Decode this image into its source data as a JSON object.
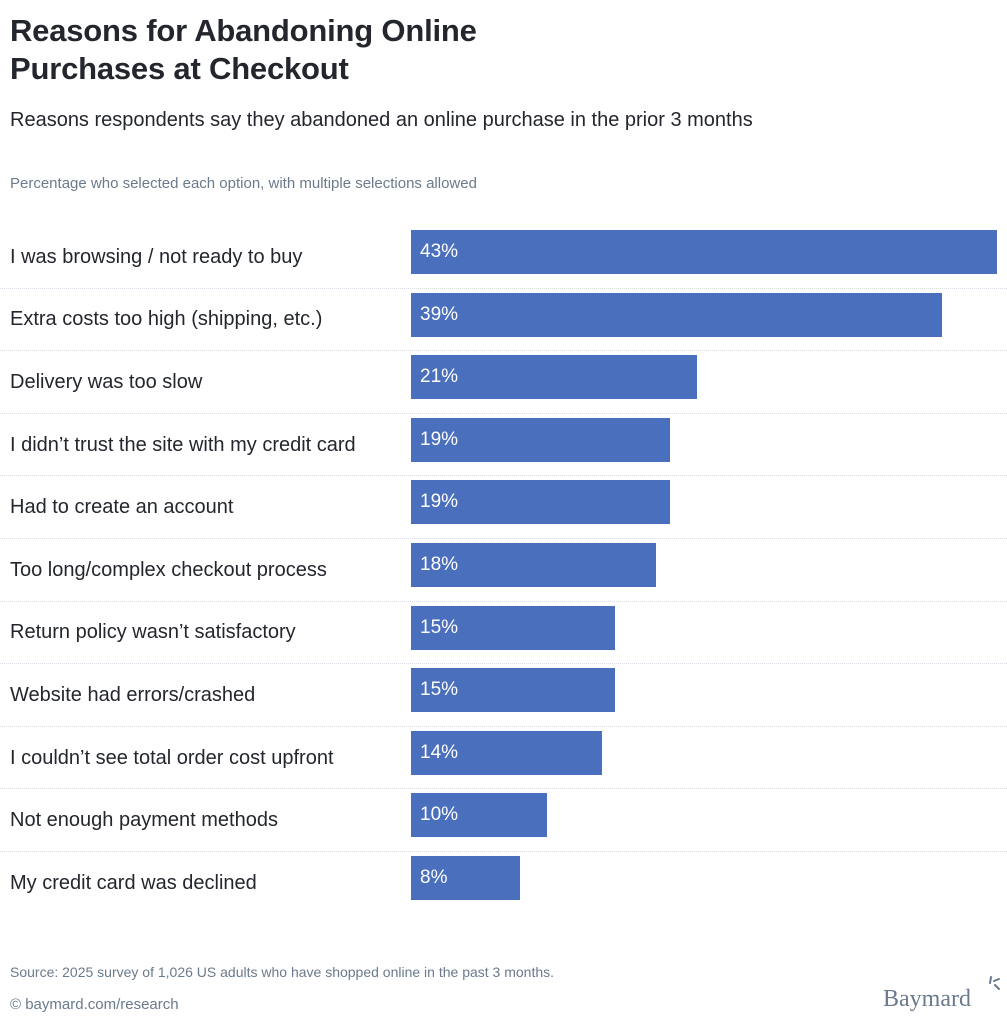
{
  "header": {
    "title_line1": "Reasons for Abandoning Online",
    "title_line2": "Purchases at Checkout",
    "subtitle": "Reasons respondents say they abandoned an online purchase in the prior 3 months",
    "note": "Percentage who selected each option, with multiple selections allowed"
  },
  "footer": {
    "source": "Source: 2025 survey of 1,026 US adults who have shopped online in the past 3 months.",
    "copyright": "© baymard.com/research",
    "logo_text": "Baymard"
  },
  "colors": {
    "bar": "#4a6fbd",
    "text": "#23272d",
    "muted": "#6b7a8c"
  },
  "chart_data": {
    "type": "bar",
    "orientation": "horizontal",
    "title": "Reasons for Abandoning Online Purchases at Checkout",
    "subtitle": "Reasons respondents say they abandoned an online purchase in the prior 3 months",
    "xlabel": "Percentage who selected each option, with multiple selections allowed",
    "ylabel": "",
    "grid": false,
    "legend": "none",
    "xlim": [
      0,
      43
    ],
    "categories": [
      "I was browsing / not ready to buy",
      "Extra costs too high (shipping, etc.)",
      "Delivery was too slow",
      "I didn’t trust the site with my credit card",
      "Had to create an account",
      "Too long/complex checkout process",
      "Return policy wasn’t satisfactory",
      "Website had errors/crashed",
      "I couldn’t see total order cost upfront",
      "Not enough payment methods",
      "My credit card was declined"
    ],
    "values": [
      43,
      39,
      21,
      19,
      19,
      18,
      15,
      15,
      14,
      10,
      8
    ],
    "value_labels": [
      "43%",
      "39%",
      "21%",
      "19%",
      "19%",
      "18%",
      "15%",
      "15%",
      "14%",
      "10%",
      "8%"
    ]
  }
}
